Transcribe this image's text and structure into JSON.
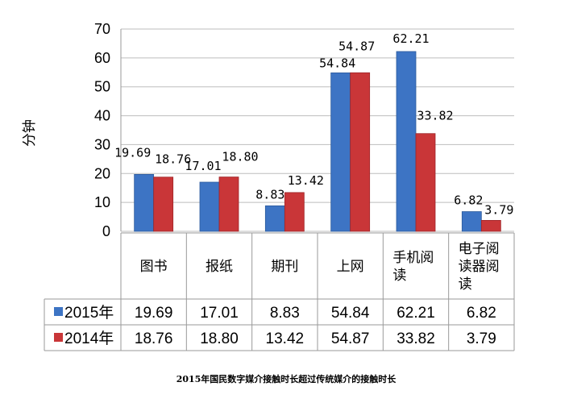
{
  "chart_data": {
    "type": "bar",
    "title": "2015年国民数字媒介接触时长超过传统媒介的接触时长",
    "ylabel": "分钟",
    "xlabel": "",
    "ylim": [
      0,
      70
    ],
    "yticks": [
      "0",
      "10",
      "20",
      "30",
      "40",
      "50",
      "60",
      "70"
    ],
    "grid": true,
    "legend": "data-table",
    "categories": [
      [
        "图书"
      ],
      [
        "报纸"
      ],
      [
        "期刊"
      ],
      [
        "上网"
      ],
      [
        "手机阅",
        "读"
      ],
      [
        "电子阅",
        "读器阅",
        "读"
      ]
    ],
    "series": [
      {
        "name": "2015年",
        "color": "#3d74c4",
        "values": [
          19.69,
          17.01,
          8.83,
          54.84,
          62.21,
          6.82
        ]
      },
      {
        "name": "2014年",
        "color": "#c93638",
        "values": [
          18.76,
          18.8,
          13.42,
          54.87,
          33.82,
          3.79
        ]
      }
    ],
    "value_labels": [
      [
        "19.69",
        "17.01",
        "8.83",
        "54.84",
        "62.21",
        "6.82"
      ],
      [
        "18.76",
        "18.80",
        "13.42",
        "54.87",
        "33.82",
        "3.79"
      ]
    ],
    "table_values": [
      [
        "19.69",
        "17.01",
        "8.83",
        "54.84",
        "62.21",
        "6.82"
      ],
      [
        "18.76",
        "18.80",
        "13.42",
        "54.87",
        "33.82",
        "3.79"
      ]
    ]
  }
}
